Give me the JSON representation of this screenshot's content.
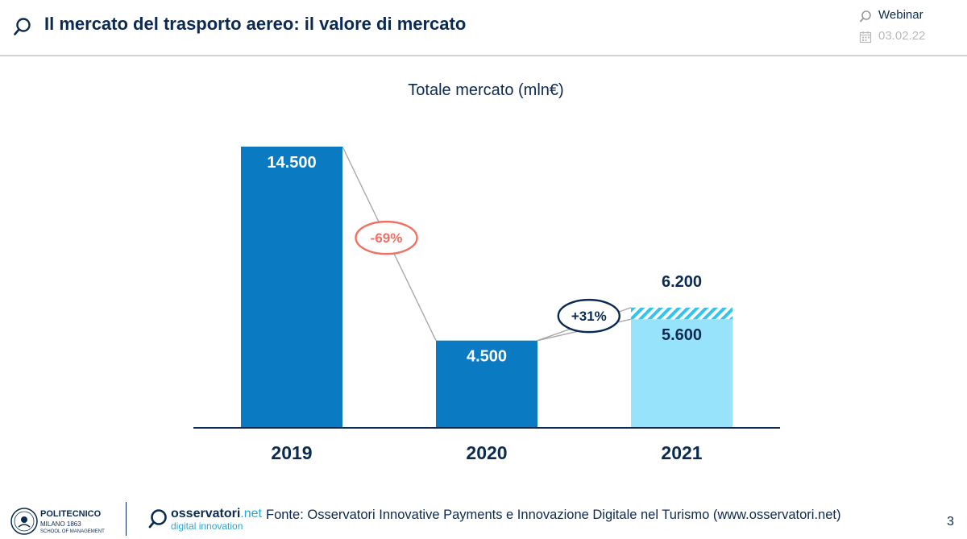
{
  "header": {
    "title": "Il mercato del trasporto aereo: il valore di mercato",
    "event_label": "Webinar",
    "date": "03.02.22",
    "icons": [
      "search-bubble-icon",
      "calendar-icon"
    ]
  },
  "chart_data": {
    "type": "bar",
    "title": "Totale mercato (mln€)",
    "categories": [
      "2019",
      "2020",
      "2021"
    ],
    "values": [
      14500,
      4500,
      5600
    ],
    "value_labels": [
      "14.500",
      "4.500",
      "5.600"
    ],
    "extra_segment": {
      "category": "2021",
      "base": 5600,
      "top": 6200,
      "label": "6.200",
      "style": "hatched"
    },
    "changes": [
      {
        "from": "2019",
        "to": "2020",
        "label": "-69%",
        "color": "#f07064"
      },
      {
        "from": "2020",
        "to": "2021",
        "label": "+31%",
        "color": "#0b2a52"
      }
    ],
    "colors": {
      "bar": "#0a7ac2",
      "bar_2021": "#96e3fb",
      "hatch": "#33c3ef"
    },
    "ylim": [
      0,
      14500
    ],
    "xlabel": "",
    "ylabel": ""
  },
  "footer": {
    "institution": "POLITECNICO",
    "institution_sub": "MILANO 1863",
    "institution_school": "SCHOOL OF MANAGEMENT",
    "brand_main": "osservatori",
    "brand_suffix": ".net",
    "brand_sub": "digital innovation",
    "source": "Fonte: Osservatori Innovative Payments e Innovazione Digitale nel Turismo (www.osservatori.net)",
    "page_number": "3"
  }
}
